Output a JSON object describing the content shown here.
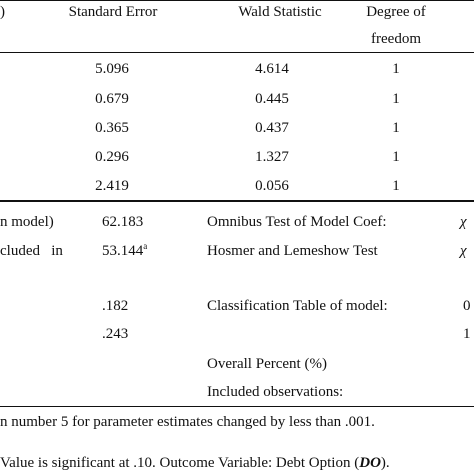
{
  "header": {
    "col0_fragment": ")",
    "standard_error": "Standard Error",
    "wald_statistic": "Wald Statistic",
    "degree_line1": "Degree of",
    "degree_line2": "freedom"
  },
  "coefficient_rows": [
    {
      "se": "5.096",
      "wald": "4.614",
      "df": "1"
    },
    {
      "se": "0.679",
      "wald": "0.445",
      "df": "1"
    },
    {
      "se": "0.365",
      "wald": "0.437",
      "df": "1"
    },
    {
      "se": "0.296",
      "wald": "1.327",
      "df": "1"
    },
    {
      "se": "2.419",
      "wald": "0.056",
      "df": "1"
    }
  ],
  "fit_stats": {
    "row1_label_fragment": "n model)",
    "row1_value": "62.183",
    "row2_label_fragment": "cluded   in",
    "row2_value": "53.144",
    "row2_sup": "a",
    "row3_value": ".182",
    "row4_value": ".243"
  },
  "tests": {
    "omnibus_label": "Omnibus Test of Model Coef:",
    "omnibus_symbol": "χ",
    "hosmer_label": "Hosmer and Lemeshow Test",
    "hosmer_symbol": "χ",
    "classification_label": "Classification Table of model:",
    "classification_value_1": "0",
    "classification_value_2": "1",
    "overall_percent_label": "Overall Percent (%)",
    "included_observations_label": "Included observations:"
  },
  "notes": {
    "note1": "n number 5 for parameter estimates changed by less than .001.",
    "note2_text": "Value is significant at .10. Outcome Variable: Debt Option (",
    "note2_bold_italic": "DO",
    "note2_end": ")."
  }
}
